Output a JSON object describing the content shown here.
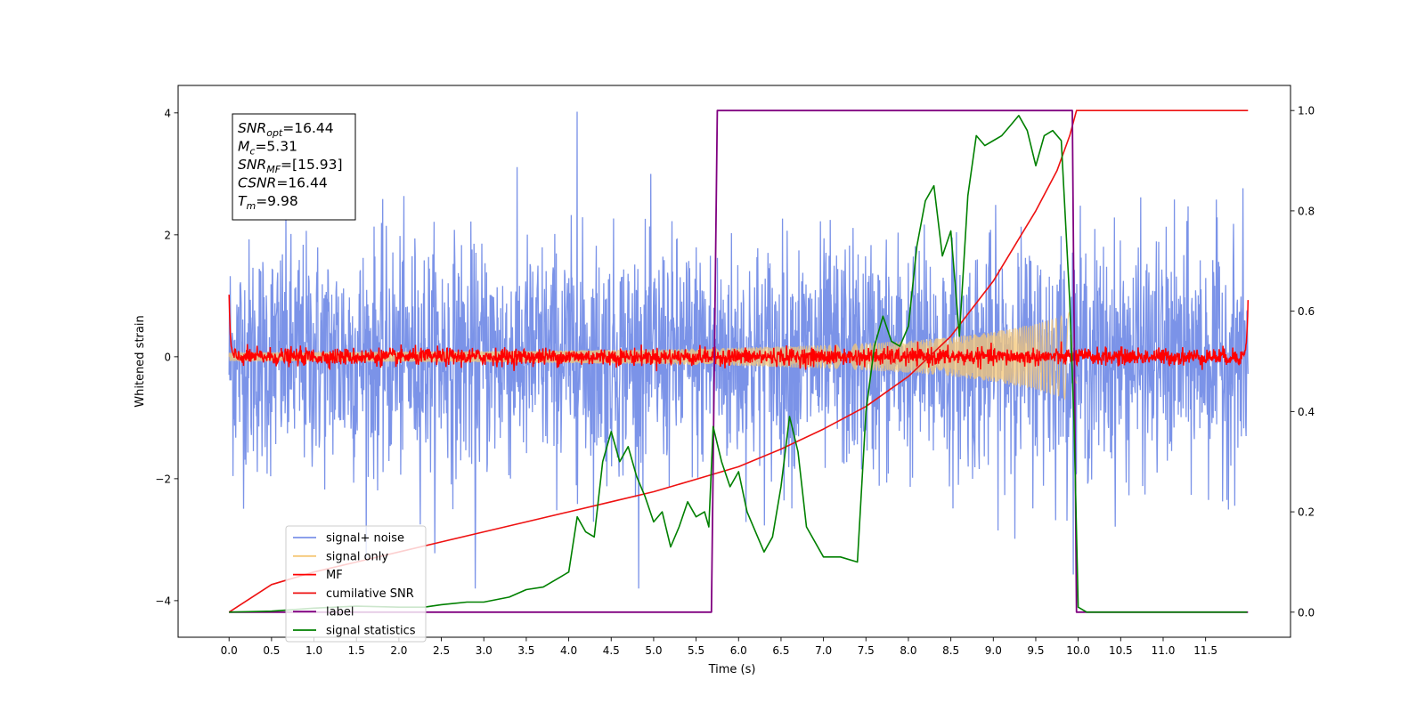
{
  "chart_data": {
    "type": "line",
    "xlabel": "Time (s)",
    "ylabel": "Whitened strain",
    "xlim": [
      -0.6,
      12.5
    ],
    "ylim_left": [
      -4.6,
      4.45
    ],
    "ylim_right": [
      -0.05,
      1.05
    ],
    "x_ticks": [
      0.0,
      0.5,
      1.0,
      1.5,
      2.0,
      2.5,
      3.0,
      3.5,
      4.0,
      4.5,
      5.0,
      5.5,
      6.0,
      6.5,
      7.0,
      7.5,
      8.0,
      8.5,
      9.0,
      9.5,
      10.0,
      10.5,
      11.0,
      11.5
    ],
    "x_tick_labels": [
      "0.0",
      "0.5",
      "1.0",
      "1.5",
      "2.0",
      "2.5",
      "3.0",
      "3.5",
      "4.0",
      "4.5",
      "5.0",
      "5.5",
      "6.0",
      "6.5",
      "7.0",
      "7.5",
      "8.0",
      "8.5",
      "9.0",
      "9.5",
      "10.0",
      "10.5",
      "11.0",
      "11.5"
    ],
    "y_left_ticks": [
      -4,
      -2,
      0,
      2,
      4
    ],
    "y_left_tick_labels": [
      "−4",
      "−2",
      "0",
      "2",
      "4"
    ],
    "y_right_ticks": [
      0.0,
      0.2,
      0.4,
      0.6,
      0.8,
      1.0
    ],
    "y_right_tick_labels": [
      "0.0",
      "0.2",
      "0.4",
      "0.6",
      "0.8",
      "1.0"
    ],
    "grid": false,
    "legend_position": "lower-left",
    "annotation": [
      {
        "main": "SNR",
        "sub": "opt",
        "rest": "=16.44"
      },
      {
        "main": "M",
        "sub": "c",
        "rest": "=5.31"
      },
      {
        "main": "SNR",
        "sub": "MF",
        "rest": "=[15.93]"
      },
      {
        "main": "CSNR",
        "sub": "",
        "rest": "=16.44"
      },
      {
        "main": "T",
        "sub": "m",
        "rest": "=9.98"
      }
    ],
    "series": [
      {
        "name": "signal+ noise",
        "axis": "left",
        "color": "#7b93e8",
        "kind": "noise",
        "x_range": [
          0.0,
          12.0
        ],
        "typical_amplitude": 1.0,
        "max": 4.02,
        "min": -3.8
      },
      {
        "name": "signal only",
        "axis": "left",
        "color": "#f5c776",
        "kind": "chirp",
        "x_range": [
          0.0,
          9.98
        ],
        "envelope": {
          "x": [
            0.0,
            3.0,
            5.0,
            6.0,
            7.0,
            8.0,
            8.5,
            9.0,
            9.5,
            9.8,
            9.98
          ],
          "amplitude": [
            0.07,
            0.09,
            0.12,
            0.15,
            0.19,
            0.26,
            0.32,
            0.41,
            0.54,
            0.66,
            0.78
          ]
        }
      },
      {
        "name": "MF",
        "axis": "left",
        "color": "#ff0000",
        "kind": "small-noise",
        "x_range": [
          0.0,
          12.0
        ],
        "typical_amplitude": 0.07,
        "edge_values": [
          1.0,
          0.95
        ]
      },
      {
        "name": "cumilative SNR",
        "axis": "right",
        "color": "#ee1111",
        "x": [
          0.0,
          0.5,
          1.0,
          1.5,
          2.0,
          2.5,
          3.0,
          3.5,
          4.0,
          4.5,
          5.0,
          5.5,
          6.0,
          6.5,
          7.0,
          7.5,
          8.0,
          8.5,
          9.0,
          9.25,
          9.5,
          9.75,
          9.9,
          9.98,
          12.0
        ],
        "values": [
          0.0,
          0.055,
          0.08,
          0.1,
          0.12,
          0.14,
          0.16,
          0.18,
          0.2,
          0.22,
          0.24,
          0.265,
          0.29,
          0.325,
          0.365,
          0.41,
          0.47,
          0.55,
          0.66,
          0.73,
          0.8,
          0.88,
          0.95,
          1.0,
          1.0
        ]
      },
      {
        "name": "label",
        "axis": "right",
        "color": "#800080",
        "x": [
          0.0,
          5.68,
          5.75,
          9.93,
          9.98,
          12.0
        ],
        "values": [
          0.0,
          0.0,
          1.0,
          1.0,
          0.0,
          0.0
        ]
      },
      {
        "name": "signal statistics",
        "axis": "right",
        "color": "#008000",
        "x": [
          0.0,
          0.5,
          1.0,
          1.5,
          2.0,
          2.3,
          2.5,
          2.8,
          3.0,
          3.3,
          3.5,
          3.7,
          3.9,
          4.0,
          4.1,
          4.2,
          4.3,
          4.4,
          4.5,
          4.6,
          4.7,
          4.8,
          4.9,
          5.0,
          5.1,
          5.2,
          5.3,
          5.4,
          5.5,
          5.6,
          5.65,
          5.7,
          5.8,
          5.9,
          6.0,
          6.1,
          6.2,
          6.3,
          6.4,
          6.5,
          6.6,
          6.7,
          6.8,
          7.0,
          7.2,
          7.4,
          7.5,
          7.6,
          7.7,
          7.8,
          7.9,
          8.0,
          8.1,
          8.2,
          8.3,
          8.4,
          8.5,
          8.6,
          8.7,
          8.8,
          8.9,
          9.0,
          9.1,
          9.2,
          9.3,
          9.4,
          9.5,
          9.6,
          9.7,
          9.8,
          9.9,
          9.95,
          10.0,
          10.1,
          10.5,
          11.0,
          11.5,
          11.99
        ],
        "values": [
          0.0,
          0.002,
          0.008,
          0.012,
          0.01,
          0.01,
          0.015,
          0.02,
          0.02,
          0.03,
          0.045,
          0.05,
          0.07,
          0.08,
          0.19,
          0.16,
          0.15,
          0.3,
          0.36,
          0.3,
          0.33,
          0.27,
          0.23,
          0.18,
          0.2,
          0.13,
          0.17,
          0.22,
          0.19,
          0.2,
          0.17,
          0.37,
          0.3,
          0.25,
          0.28,
          0.2,
          0.16,
          0.12,
          0.15,
          0.25,
          0.39,
          0.32,
          0.17,
          0.11,
          0.11,
          0.1,
          0.4,
          0.53,
          0.59,
          0.54,
          0.53,
          0.57,
          0.73,
          0.82,
          0.85,
          0.71,
          0.76,
          0.55,
          0.83,
          0.95,
          0.93,
          0.94,
          0.95,
          0.97,
          0.99,
          0.96,
          0.89,
          0.95,
          0.96,
          0.94,
          0.62,
          0.38,
          0.01,
          0.0,
          0.0,
          0.0,
          0.0,
          0.0
        ]
      }
    ]
  }
}
